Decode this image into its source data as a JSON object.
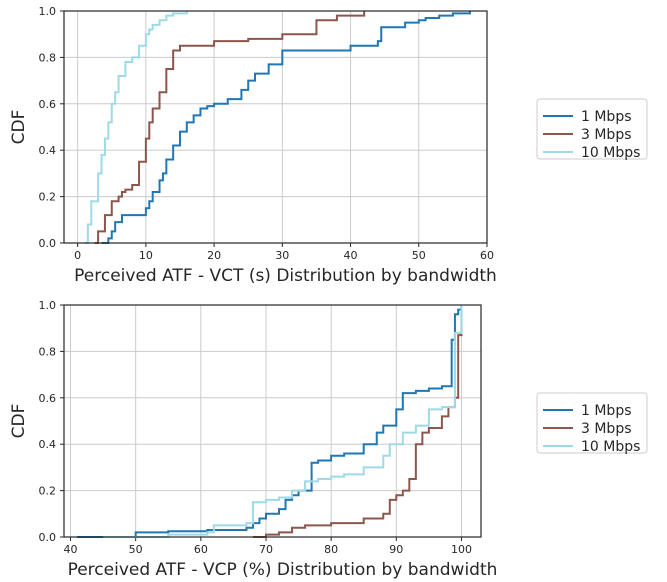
{
  "chart_data": [
    {
      "type": "line",
      "xlabel": "Perceived ATF - VCT (s) Distribution by bandwidth",
      "ylabel": "CDF",
      "xlim": [
        -2,
        60
      ],
      "ylim": [
        0,
        1
      ],
      "xticks": [
        "0",
        "10",
        "20",
        "30",
        "40",
        "50",
        "60"
      ],
      "yticks": [
        "0.0",
        "0.2",
        "0.4",
        "0.6",
        "0.8",
        "1.0"
      ],
      "grid": true,
      "legend": "right",
      "series": [
        {
          "name": "1 Mbps",
          "color": "#1f77b4",
          "x": [
            3.5,
            4.5,
            5,
            5.5,
            6.5,
            10,
            10.5,
            11,
            12,
            12.5,
            13,
            14,
            15,
            16,
            17,
            18,
            19,
            20,
            22,
            24,
            25,
            26,
            28,
            30,
            40,
            44,
            44.5,
            48,
            50,
            51,
            53,
            55,
            57.5
          ],
          "y": [
            0.0,
            0.02,
            0.05,
            0.09,
            0.12,
            0.15,
            0.18,
            0.22,
            0.27,
            0.3,
            0.36,
            0.42,
            0.48,
            0.52,
            0.55,
            0.58,
            0.59,
            0.6,
            0.62,
            0.66,
            0.7,
            0.73,
            0.77,
            0.83,
            0.85,
            0.87,
            0.93,
            0.95,
            0.96,
            0.97,
            0.98,
            0.99,
            1.0
          ]
        },
        {
          "name": "3 Mbps",
          "color": "#8c564b",
          "x": [
            2.5,
            3,
            4,
            5,
            6,
            6.5,
            7,
            8,
            9,
            10,
            10.5,
            11,
            12,
            13,
            14,
            15,
            20,
            25,
            30,
            35,
            38,
            42
          ],
          "y": [
            0.0,
            0.05,
            0.12,
            0.18,
            0.2,
            0.22,
            0.23,
            0.25,
            0.35,
            0.45,
            0.52,
            0.58,
            0.65,
            0.75,
            0.83,
            0.85,
            0.87,
            0.88,
            0.9,
            0.96,
            0.98,
            1.0
          ]
        },
        {
          "name": "10 Mbps",
          "color": "#9edae5",
          "x": [
            1,
            1.5,
            2,
            3,
            3.5,
            4,
            4.5,
            5,
            5.5,
            6,
            7,
            8,
            9,
            10,
            10.5,
            11,
            12,
            13,
            14,
            16
          ],
          "y": [
            0.0,
            0.08,
            0.18,
            0.3,
            0.38,
            0.45,
            0.52,
            0.6,
            0.65,
            0.72,
            0.78,
            0.8,
            0.85,
            0.9,
            0.92,
            0.94,
            0.96,
            0.98,
            0.99,
            1.0
          ]
        }
      ]
    },
    {
      "type": "line",
      "xlabel": "Perceived ATF - VCP (%) Distribution by bandwidth",
      "ylabel": "CDF",
      "xlim": [
        39,
        103
      ],
      "ylim": [
        0,
        1
      ],
      "xticks": [
        "40",
        "50",
        "60",
        "70",
        "80",
        "90",
        "100"
      ],
      "yticks": [
        "0.0",
        "0.2",
        "0.4",
        "0.6",
        "0.8",
        "1.0"
      ],
      "grid": true,
      "legend": "right",
      "series": [
        {
          "name": "1 Mbps",
          "color": "#1f77b4",
          "x": [
            41,
            50,
            55,
            61,
            67,
            68,
            69,
            70,
            72,
            73,
            74,
            75,
            77,
            78,
            80,
            82,
            85,
            87,
            88,
            90,
            91,
            93,
            95,
            97,
            98.5,
            99,
            99.5,
            100
          ],
          "y": [
            0.0,
            0.02,
            0.025,
            0.03,
            0.04,
            0.06,
            0.08,
            0.1,
            0.12,
            0.16,
            0.18,
            0.2,
            0.32,
            0.33,
            0.35,
            0.36,
            0.4,
            0.45,
            0.48,
            0.55,
            0.62,
            0.63,
            0.64,
            0.65,
            0.85,
            0.96,
            0.98,
            1.0
          ]
        },
        {
          "name": "3 Mbps",
          "color": "#8c564b",
          "x": [
            68,
            70,
            72,
            74,
            76,
            80,
            85,
            88,
            89,
            90,
            91,
            92,
            93,
            94,
            95,
            97,
            98,
            99,
            99.5,
            100
          ],
          "y": [
            0.0,
            0.01,
            0.02,
            0.04,
            0.05,
            0.06,
            0.08,
            0.1,
            0.16,
            0.18,
            0.2,
            0.25,
            0.4,
            0.45,
            0.47,
            0.52,
            0.56,
            0.6,
            0.87,
            1.0
          ]
        },
        {
          "name": "10 Mbps",
          "color": "#9edae5",
          "x": [
            45,
            55,
            61,
            62,
            67,
            68,
            70,
            72,
            74,
            76,
            78,
            80,
            82,
            85,
            88,
            89,
            91,
            93,
            95,
            97,
            99,
            100
          ],
          "y": [
            0.0,
            0.01,
            0.02,
            0.05,
            0.06,
            0.15,
            0.16,
            0.17,
            0.2,
            0.24,
            0.25,
            0.26,
            0.27,
            0.3,
            0.35,
            0.4,
            0.45,
            0.48,
            0.55,
            0.56,
            0.88,
            1.0
          ]
        }
      ]
    }
  ]
}
